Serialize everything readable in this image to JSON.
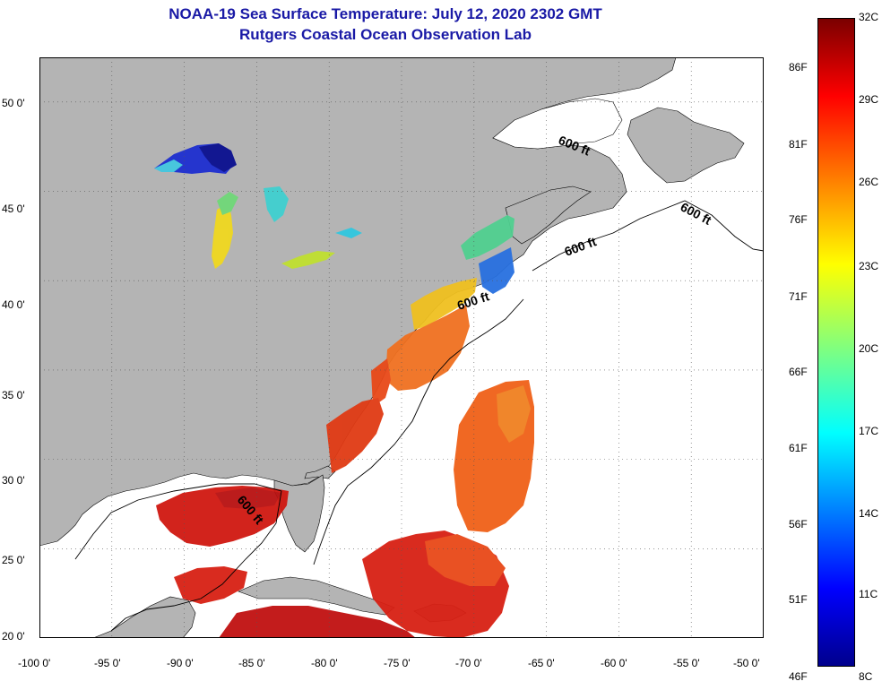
{
  "title": "NOAA-19 Sea Surface Temperature:  July 12, 2020 2302 GMT",
  "subtitle": "Rutgers Coastal Ocean Observation Lab",
  "map": {
    "lon_range": [
      -100,
      -50
    ],
    "lat_range": [
      20,
      52.5
    ],
    "lon_ticks": [
      "-100 0'",
      "-95 0'",
      "-90 0'",
      "-85 0'",
      "-80 0'",
      "-75 0'",
      "-70 0'",
      "-65 0'",
      "-60 0'",
      "-55 0'",
      "-50 0'"
    ],
    "lat_ticks": [
      "50 0'",
      "45 0'",
      "40 0'",
      "35 0'",
      "30 0'",
      "25 0'",
      "20 0'"
    ],
    "contour_label": "600 ft",
    "colors": {
      "land": "#b4b4b4",
      "cloud": "#ffffff",
      "coast": "#000000"
    }
  },
  "colorbar": {
    "celsius_labels": [
      "32C",
      "29C",
      "26C",
      "23C",
      "20C",
      "17C",
      "14C",
      "11C",
      "8C"
    ],
    "fahrenheit_labels": [
      "86F",
      "81F",
      "76F",
      "71F",
      "66F",
      "61F",
      "56F",
      "51F",
      "46F"
    ],
    "min_c": 8,
    "max_c": 32
  }
}
